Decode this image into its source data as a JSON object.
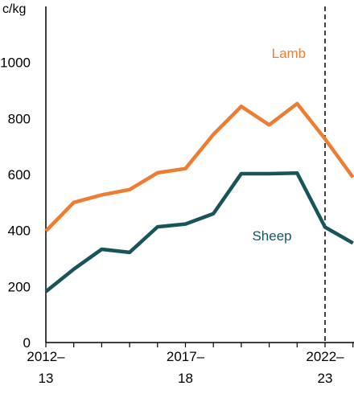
{
  "chart_data": {
    "type": "line",
    "unit_label": "c/kg",
    "x": [
      "2012–13",
      "2013–14",
      "2014–15",
      "2015–16",
      "2016–17",
      "2017–18",
      "2018–19",
      "2019–20",
      "2020–21",
      "2021–22",
      "2022–23",
      "2023–24"
    ],
    "x_tick_labels": [
      {
        "index": 0,
        "line1": "2012–",
        "line2": "13"
      },
      {
        "index": 5,
        "line1": "2017–",
        "line2": "18"
      },
      {
        "index": 10,
        "line1": "2022–",
        "line2": "23"
      }
    ],
    "y_ticks": [
      0,
      200,
      400,
      600,
      800,
      1000
    ],
    "ylim": [
      0,
      1200
    ],
    "grid": false,
    "forecast_divider_at_index": 10,
    "series": [
      {
        "name": "Lamb",
        "color": "#ED7D31",
        "values": [
          398,
          500,
          527,
          546,
          606,
          621,
          743,
          843,
          777,
          853,
          727,
          590
        ]
      },
      {
        "name": "Sheep",
        "color": "#17555A",
        "values": [
          182,
          262,
          333,
          322,
          413,
          423,
          460,
          603,
          603,
          605,
          412,
          355
        ]
      }
    ]
  }
}
